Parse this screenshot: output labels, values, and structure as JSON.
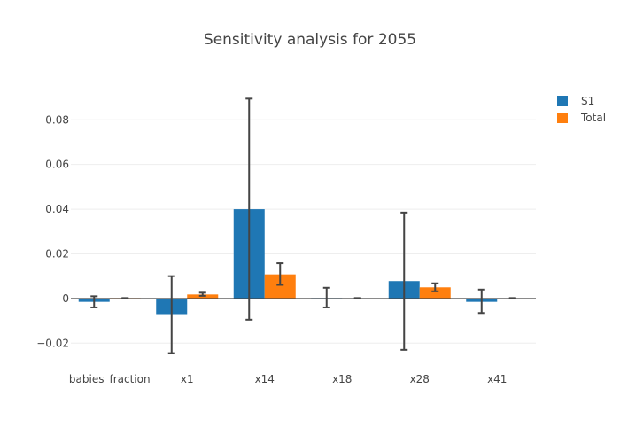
{
  "chart_data": {
    "type": "bar",
    "title": "Sensitivity analysis for 2055",
    "xlabel": "",
    "ylabel": "",
    "categories": [
      "babies_fraction",
      "x1",
      "x14",
      "x18",
      "x28",
      "x41"
    ],
    "ylim": [
      -0.031,
      0.094
    ],
    "yticks": [
      -0.02,
      0,
      0.02,
      0.04,
      0.06,
      0.08
    ],
    "ytick_labels": [
      "−0.02",
      "0",
      "0.02",
      "0.04",
      "0.06",
      "0.08"
    ],
    "grid": true,
    "legend_position": "top-right",
    "series": [
      {
        "name": "S1",
        "color": "#1f77b4",
        "values": [
          -0.0015,
          -0.007,
          0.04,
          0.0002,
          0.0078,
          -0.0015
        ],
        "error_low": [
          -0.004,
          -0.0245,
          -0.0095,
          -0.004,
          -0.023,
          -0.0065
        ],
        "error_high": [
          0.001,
          0.01,
          0.0895,
          0.0048,
          0.0385,
          0.004
        ]
      },
      {
        "name": "Total",
        "color": "#ff7f0e",
        "values": [
          0.0002,
          0.0018,
          0.0108,
          0.0001,
          0.005,
          0.0001
        ],
        "error_low": [
          0.0,
          0.0012,
          0.0061,
          0.0,
          0.0032,
          0.0
        ],
        "error_high": [
          0.0002,
          0.0026,
          0.0158,
          0.0002,
          0.0068,
          0.0002
        ]
      }
    ]
  }
}
